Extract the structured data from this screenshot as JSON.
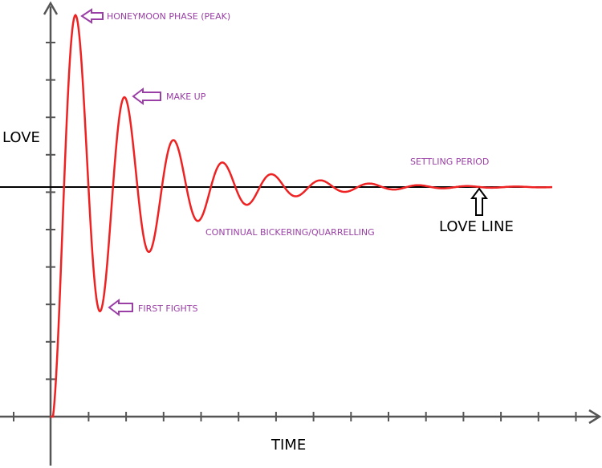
{
  "axes": {
    "y_label": "LOVE",
    "x_label": "TIME"
  },
  "annotations": {
    "peak": "HONEYMOON PHASE (PEAK)",
    "make_up": "MAKE UP",
    "first_fights": "FIRST FIGHTS",
    "bickering": "CONTINUAL BICKERING/QUARRELLING",
    "settling": "SETTLING PERIOD",
    "love_line": "LOVE LINE"
  }
}
